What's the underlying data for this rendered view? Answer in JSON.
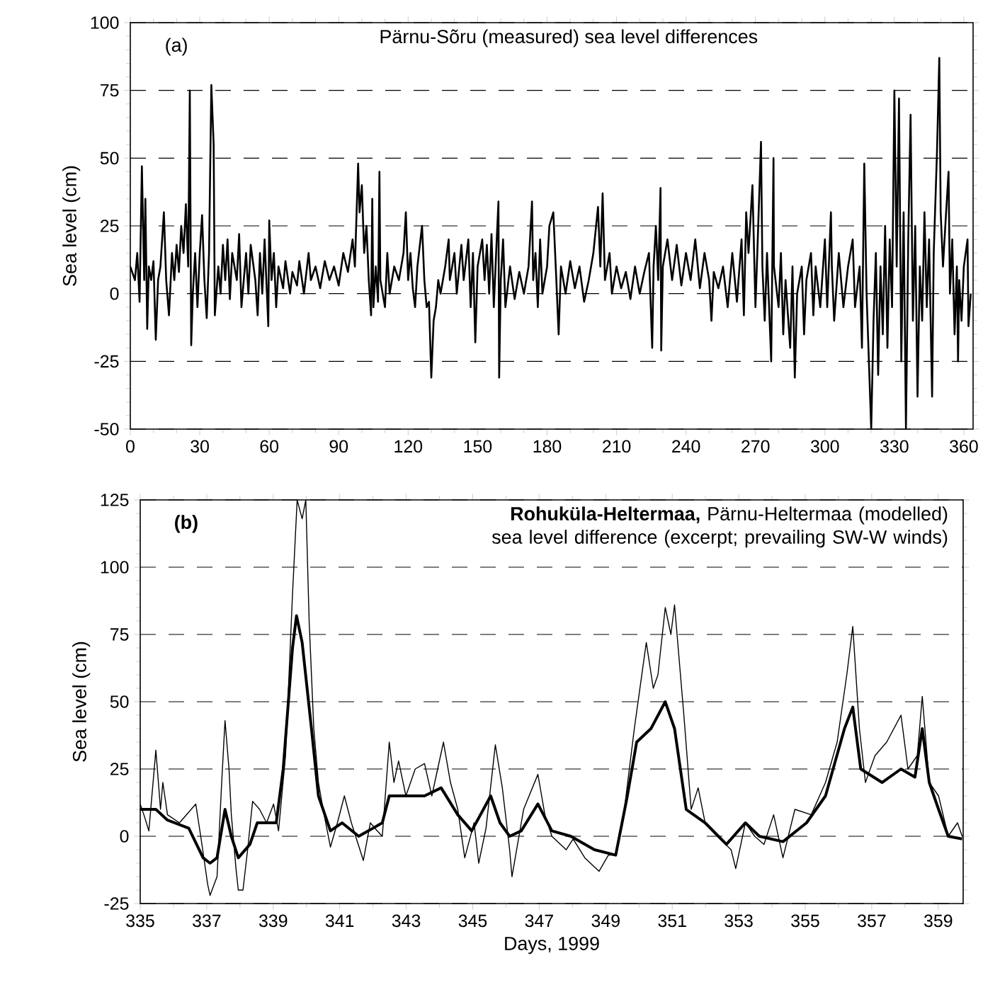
{
  "chart_data": [
    {
      "type": "line",
      "title": "Pärnu-Sõru (measured) sea level differences",
      "annotations": [
        "(a)"
      ],
      "ylabel": "Sea level (cm)",
      "color": "#000000",
      "grid": "y",
      "xlim": [
        0,
        364
      ],
      "ylim": [
        -50,
        100
      ],
      "xticks": [
        0,
        30,
        60,
        90,
        120,
        150,
        180,
        210,
        240,
        270,
        300,
        330,
        360
      ],
      "yticks": [
        -50,
        -25,
        0,
        25,
        50,
        75,
        100
      ],
      "x": [
        0,
        2,
        3,
        4,
        5,
        6,
        6.5,
        7.3,
        8,
        9,
        10,
        11,
        12,
        13,
        14.5,
        15.5,
        16.7,
        18,
        19,
        20,
        21,
        22,
        23,
        24,
        25,
        25.7,
        26.3,
        27,
        28,
        29,
        30,
        31,
        32,
        33,
        34,
        35,
        36,
        36.5,
        38,
        39,
        40,
        41,
        42,
        43,
        44,
        46,
        47,
        48,
        50,
        51,
        52,
        54,
        55,
        56,
        57,
        58,
        59.6,
        60,
        61,
        62,
        63,
        64,
        66,
        67,
        69,
        70,
        72,
        73,
        75,
        77,
        78,
        80,
        82,
        84,
        86,
        88,
        90,
        92,
        94,
        96,
        97,
        98.4,
        99,
        100,
        101,
        102,
        103,
        104,
        104.5,
        105,
        106,
        107,
        107.6,
        108,
        110,
        111,
        112,
        114,
        116,
        118,
        119,
        120,
        121,
        122,
        123,
        124,
        126,
        127,
        128,
        129,
        130,
        131,
        132,
        133,
        134,
        136,
        137.5,
        138,
        140,
        141,
        143,
        144,
        146,
        147,
        148,
        149,
        150,
        152,
        153,
        154,
        155,
        156,
        157,
        158,
        159,
        159.3,
        160,
        161,
        162,
        164,
        166,
        168,
        170,
        172,
        173.5,
        174,
        175,
        176,
        177,
        178,
        180,
        181,
        182.7,
        184,
        185,
        186,
        188,
        190,
        192,
        194,
        196,
        198,
        200,
        202,
        203,
        204,
        205,
        207,
        208,
        210,
        212,
        214,
        216,
        218,
        220,
        222,
        224,
        225.4,
        226,
        227,
        228,
        229,
        229.3,
        230,
        232,
        234,
        236,
        238,
        240,
        242,
        244,
        246,
        248,
        250,
        251,
        252,
        254,
        256,
        258,
        260,
        262,
        264,
        265,
        266,
        267,
        268.7,
        270,
        271,
        272.4,
        273,
        274,
        275,
        276.8,
        277.8,
        278,
        280,
        281,
        282,
        283,
        285,
        286,
        287,
        288,
        290,
        291,
        292,
        294,
        295,
        296,
        298,
        300,
        301,
        302.6,
        303,
        304,
        306,
        308,
        310,
        312,
        313,
        315,
        316,
        317,
        318,
        319,
        320,
        321,
        322,
        323,
        324,
        325,
        326,
        327,
        328,
        329,
        330,
        331,
        332,
        333,
        334,
        335,
        336,
        337,
        338,
        339,
        340,
        341,
        342,
        343,
        344,
        345,
        346.3,
        347,
        348.4,
        349.4,
        350,
        351,
        352,
        353.4,
        354,
        355,
        356,
        357,
        357.5,
        358,
        359,
        360,
        361.6,
        362,
        363
      ],
      "values": [
        10,
        5,
        15,
        -3,
        47,
        5,
        35,
        -13,
        10,
        5,
        12,
        -17,
        5,
        10,
        30,
        5,
        -8,
        15,
        5,
        18,
        8,
        25,
        15,
        33,
        10,
        75,
        -19,
        0,
        15,
        -5,
        15,
        29,
        5,
        -9,
        15,
        77,
        55,
        -8,
        10,
        0,
        18,
        5,
        20,
        -2,
        15,
        5,
        22,
        -5,
        15,
        0,
        18,
        5,
        -8,
        15,
        0,
        20,
        -12,
        27,
        5,
        15,
        -5,
        10,
        2,
        12,
        0,
        8,
        3,
        12,
        0,
        15,
        5,
        10,
        2,
        12,
        5,
        10,
        3,
        15,
        8,
        20,
        10,
        48,
        30,
        40,
        15,
        25,
        5,
        -8,
        35,
        -5,
        10,
        -3,
        45,
        5,
        -5,
        15,
        0,
        10,
        5,
        15,
        30,
        5,
        15,
        2,
        -5,
        10,
        25,
        5,
        -5,
        -3,
        -31,
        -10,
        -5,
        5,
        0,
        10,
        20,
        5,
        15,
        0,
        18,
        5,
        20,
        -5,
        15,
        -18,
        10,
        20,
        5,
        18,
        0,
        22,
        -5,
        15,
        34,
        -31,
        5,
        20,
        -5,
        10,
        -2,
        8,
        0,
        10,
        34,
        5,
        15,
        -5,
        20,
        0,
        10,
        25,
        30,
        5,
        -15,
        10,
        0,
        12,
        2,
        10,
        -3,
        5,
        15,
        32,
        10,
        37,
        5,
        15,
        0,
        10,
        2,
        8,
        -2,
        10,
        0,
        8,
        15,
        -20,
        10,
        25,
        5,
        39,
        -21,
        10,
        20,
        5,
        18,
        3,
        15,
        5,
        20,
        2,
        15,
        5,
        -10,
        8,
        2,
        10,
        -5,
        15,
        -3,
        20,
        -8,
        30,
        15,
        40,
        -5,
        20,
        56,
        10,
        -10,
        15,
        -25,
        50,
        10,
        -5,
        15,
        -15,
        5,
        -20,
        10,
        -31,
        0,
        10,
        -15,
        5,
        15,
        -8,
        10,
        -5,
        20,
        -5,
        30,
        10,
        -10,
        15,
        -5,
        10,
        20,
        -5,
        10,
        -20,
        48,
        0,
        -25,
        -50,
        -10,
        15,
        -30,
        10,
        -15,
        25,
        -20,
        20,
        -5,
        75,
        10,
        72,
        -25,
        30,
        -50,
        20,
        66,
        -10,
        25,
        -38,
        10,
        -10,
        30,
        -5,
        20,
        -38,
        15,
        52,
        87,
        30,
        10,
        25,
        45,
        0,
        20,
        -15,
        10,
        -25,
        5,
        -10,
        10,
        20,
        -12,
        0
      ]
    },
    {
      "type": "line",
      "title": "**Rohuküla-Heltermaa,** Pärnu-Heltermaa (modelled) sea level difference (excerpt; prevailing SW-W winds)",
      "annotations": [
        "(b)"
      ],
      "xlabel": "Days, 1999",
      "ylabel": "Sea level (cm)",
      "grid": "y",
      "xlim": [
        335,
        359.75
      ],
      "ylim": [
        -25,
        125
      ],
      "xticks": [
        335,
        337,
        339,
        341,
        343,
        345,
        347,
        349,
        351,
        353,
        355,
        357,
        359
      ],
      "yticks": [
        -25,
        0,
        25,
        50,
        75,
        100,
        125
      ],
      "series": [
        {
          "color": "#000000",
          "x": [
            335.0,
            335.11,
            335.26,
            335.47,
            335.61,
            335.68,
            335.82,
            336.18,
            336.67,
            336.82,
            337.03,
            337.1,
            337.31,
            337.45,
            337.55,
            337.67,
            337.74,
            337.88,
            337.95,
            338.09,
            338.23,
            338.38,
            338.59,
            338.8,
            339.01,
            339.16,
            339.37,
            339.58,
            339.72,
            339.87,
            339.98,
            340.08,
            340.22,
            340.36,
            340.5,
            340.72,
            340.93,
            341.14,
            341.35,
            341.71,
            341.92,
            342.13,
            342.28,
            342.49,
            342.63,
            342.77,
            342.99,
            343.27,
            343.55,
            343.77,
            344.12,
            344.33,
            344.55,
            344.76,
            345.04,
            345.18,
            345.4,
            345.68,
            345.89,
            346.11,
            346.18,
            346.39,
            346.53,
            346.96,
            347.17,
            347.38,
            347.81,
            348.02,
            348.37,
            348.8,
            349.08,
            349.3,
            349.51,
            349.86,
            350.22,
            350.43,
            350.57,
            350.79,
            350.96,
            351.07,
            351.35,
            351.57,
            351.78,
            351.99,
            352.35,
            352.77,
            352.91,
            353.2,
            353.48,
            353.76,
            354.05,
            354.33,
            354.69,
            355.18,
            355.61,
            355.96,
            356.25,
            356.43,
            356.63,
            356.81,
            357.1,
            357.45,
            357.88,
            358.09,
            358.37,
            358.52,
            358.73,
            359.01,
            359.3,
            359.58,
            359.72
          ],
          "values": [
            12,
            8,
            2,
            32,
            10,
            20,
            8,
            5,
            12,
            0,
            -18,
            -22,
            -15,
            20,
            43,
            25,
            8,
            -12,
            -20,
            -20,
            -5,
            13,
            10,
            5,
            12,
            2,
            30,
            90,
            125,
            118,
            125,
            80,
            40,
            20,
            10,
            -4,
            5,
            15,
            5,
            -9,
            5,
            2,
            0,
            35,
            20,
            28,
            15,
            25,
            27,
            15,
            35,
            20,
            10,
            -8,
            5,
            -10,
            3,
            34,
            18,
            -5,
            -15,
            0,
            10,
            23,
            8,
            0,
            -5,
            -1,
            -8,
            -13,
            -7,
            -7,
            5,
            40,
            72,
            55,
            60,
            85,
            75,
            86,
            45,
            10,
            18,
            5,
            0,
            -5,
            -12,
            5,
            0,
            -3,
            8,
            -8,
            10,
            8,
            20,
            35,
            60,
            78,
            40,
            20,
            30,
            35,
            45,
            25,
            30,
            52,
            20,
            15,
            0,
            5,
            0
          ]
        },
        {
          "color": "#000000",
          "x": [
            335.0,
            335.47,
            335.82,
            336.46,
            336.89,
            337.1,
            337.31,
            337.55,
            337.74,
            337.95,
            338.3,
            338.52,
            339.09,
            339.3,
            339.58,
            339.7,
            339.87,
            340.15,
            340.36,
            340.72,
            341.07,
            341.57,
            342.0,
            342.28,
            342.49,
            342.99,
            343.55,
            344.05,
            344.55,
            344.97,
            345.54,
            345.82,
            346.11,
            346.46,
            346.96,
            347.38,
            347.95,
            348.66,
            349.3,
            349.65,
            349.93,
            350.36,
            350.79,
            351.07,
            351.42,
            351.99,
            352.63,
            353.2,
            353.62,
            354.33,
            355.04,
            355.61,
            356.18,
            356.43,
            356.67,
            357.31,
            357.88,
            358.3,
            358.52,
            358.73,
            359.01,
            359.3,
            359.72
          ],
          "values": [
            10,
            10,
            6,
            3,
            -8,
            -10,
            -8,
            10,
            0,
            -8,
            -3,
            5,
            5,
            25,
            70,
            82,
            72,
            40,
            15,
            2,
            5,
            0,
            3,
            5,
            15,
            15,
            15,
            18,
            8,
            2,
            15,
            5,
            0,
            2,
            12,
            2,
            0,
            -5,
            -7,
            15,
            35,
            40,
            50,
            40,
            10,
            5,
            -3,
            5,
            0,
            -2,
            5,
            15,
            40,
            48,
            25,
            20,
            25,
            22,
            40,
            20,
            10,
            0,
            -1
          ]
        }
      ]
    }
  ]
}
